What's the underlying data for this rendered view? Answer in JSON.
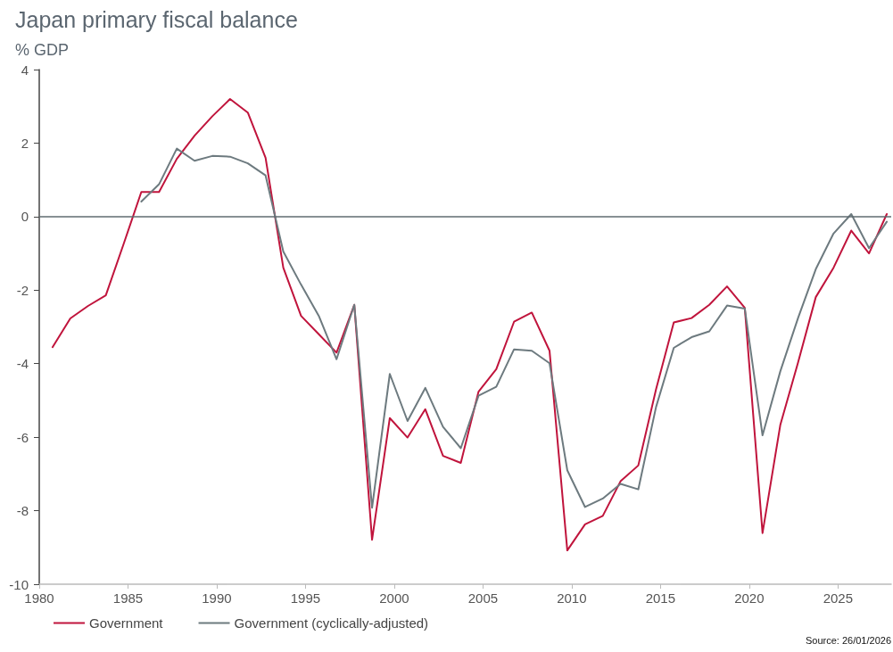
{
  "chart_data": {
    "type": "line",
    "title": "Japan primary fiscal balance",
    "subtitle": "% GDP",
    "annotations": [
      "Source: 26/01/2026"
    ],
    "xlim": [
      1980,
      2028
    ],
    "xticks": [
      1980,
      1985,
      1990,
      1995,
      2000,
      2005,
      2010,
      2015,
      2020,
      2025
    ],
    "ylim": [
      -10,
      4
    ],
    "yticks": [
      -10,
      -8,
      -6,
      -4,
      -2,
      0,
      2,
      4
    ],
    "grid": false,
    "legend": "bottom left",
    "marker": "none",
    "line_style": "solid",
    "ref_lines": [
      {
        "axis": "y",
        "value": 0,
        "color": "#5f6b70"
      }
    ],
    "series": [
      {
        "name": "Government",
        "color": "#c0143c",
        "x": [
          1980.75,
          1981.75,
          1982.75,
          1983.75,
          1984.75,
          1985.75,
          1986.75,
          1987.75,
          1988.75,
          1989.75,
          1990.75,
          1991.75,
          1992.75,
          1993.75,
          1994.75,
          1995.75,
          1996.75,
          1997.75,
          1998.75,
          1999.75,
          2000.75,
          2001.75,
          2002.75,
          2003.75,
          2004.75,
          2005.75,
          2006.75,
          2007.75,
          2008.75,
          2009.75,
          2010.75,
          2011.75,
          2012.75,
          2013.75,
          2014.75,
          2015.75,
          2016.75,
          2017.75,
          2018.75,
          2019.75,
          2020.75,
          2021.75,
          2022.75,
          2023.75,
          2024.75,
          2025.75,
          2026.75,
          2027.75
        ],
        "values": [
          -3.55,
          -2.77,
          -2.43,
          -2.14,
          -0.75,
          0.67,
          0.67,
          1.57,
          2.2,
          2.73,
          3.2,
          2.83,
          1.6,
          -1.39,
          -2.7,
          -3.2,
          -3.7,
          -2.4,
          -8.79,
          -5.48,
          -6.01,
          -5.24,
          -6.51,
          -6.7,
          -4.76,
          -4.15,
          -2.86,
          -2.61,
          -3.65,
          -9.08,
          -8.37,
          -8.14,
          -7.2,
          -6.77,
          -4.7,
          -2.88,
          -2.76,
          -2.4,
          -1.9,
          -2.48,
          -8.61,
          -5.67,
          -3.97,
          -2.19,
          -1.39,
          -0.38,
          -1.0,
          0.07
        ]
      },
      {
        "name": "Government (cyclically-adjusted)",
        "color": "#6d7a7f",
        "x": [
          1985.75,
          1986.75,
          1987.75,
          1988.75,
          1989.75,
          1990.75,
          1991.75,
          1992.75,
          1993.75,
          1994.75,
          1995.75,
          1996.75,
          1997.75,
          1998.75,
          1999.75,
          2000.75,
          2001.75,
          2002.75,
          2003.75,
          2004.75,
          2005.75,
          2006.75,
          2007.75,
          2008.75,
          2009.75,
          2010.75,
          2011.75,
          2012.75,
          2013.75,
          2014.75,
          2015.75,
          2016.75,
          2017.75,
          2018.75,
          2019.75,
          2020.75,
          2021.75,
          2022.75,
          2023.75,
          2024.75,
          2025.75,
          2026.75,
          2027.75
        ],
        "values": [
          0.41,
          0.88,
          1.85,
          1.52,
          1.65,
          1.63,
          1.45,
          1.12,
          -0.95,
          -1.85,
          -2.7,
          -3.88,
          -2.4,
          -7.92,
          -4.28,
          -5.56,
          -4.66,
          -5.72,
          -6.3,
          -4.87,
          -4.63,
          -3.61,
          -3.65,
          -3.99,
          -6.9,
          -7.9,
          -7.67,
          -7.27,
          -7.42,
          -5.18,
          -3.57,
          -3.28,
          -3.12,
          -2.42,
          -2.5,
          -5.95,
          -4.21,
          -2.76,
          -1.43,
          -0.46,
          0.07,
          -0.86,
          -0.14
        ]
      }
    ]
  }
}
